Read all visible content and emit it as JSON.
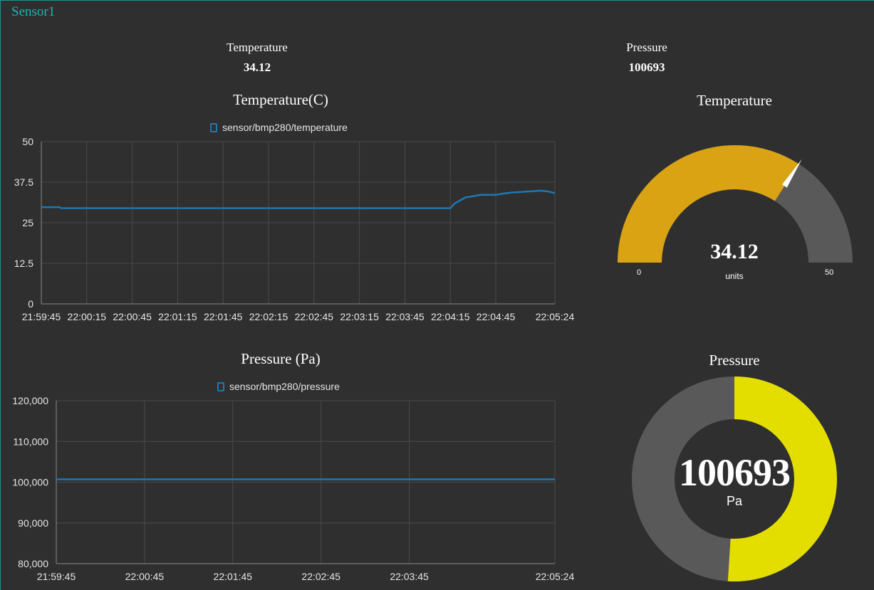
{
  "group": {
    "title": "Sensor1"
  },
  "text_temperature": {
    "label": "Temperature",
    "value": "34.12"
  },
  "text_pressure": {
    "label": "Pressure",
    "value": "100693"
  },
  "temperature_chart": {
    "title": "Temperature(C)",
    "legend": "sensor/bmp280/temperature"
  },
  "pressure_chart": {
    "title": "Pressure (Pa)",
    "legend": "sensor/bmp280/pressure"
  },
  "temperature_gauge": {
    "title": "Temperature",
    "value": "34.12",
    "units": "units",
    "min": "0",
    "max": "50",
    "numeric_value": 34.12,
    "range": [
      0,
      50
    ]
  },
  "pressure_gauge": {
    "title": "Pressure",
    "value": "100693",
    "units": "Pa",
    "fill_fraction": 0.51
  },
  "colors": {
    "accent": "#1fb3b3",
    "series": "#1f77b4",
    "gauge_fill": "#daa314",
    "donut_fill": "#e3de00",
    "track": "#595959"
  },
  "chart_data": [
    {
      "type": "line",
      "title": "Temperature(C)",
      "series": [
        {
          "name": "sensor/bmp280/temperature",
          "x": [
            "21:59:45",
            "21:59:57",
            "21:59:58",
            "22:04:15",
            "22:04:18",
            "22:04:25",
            "22:04:35",
            "22:04:45",
            "22:04:50",
            "22:04:55",
            "22:05:05",
            "22:05:15",
            "22:05:20",
            "22:05:24"
          ],
          "values": [
            29.8,
            29.8,
            29.5,
            29.5,
            31.0,
            32.8,
            33.6,
            33.6,
            34.0,
            34.3,
            34.6,
            34.9,
            34.6,
            34.12
          ]
        }
      ],
      "xticks": [
        "21:59:45",
        "22:00:15",
        "22:00:45",
        "22:01:15",
        "22:01:45",
        "22:02:15",
        "22:02:45",
        "22:03:15",
        "22:03:45",
        "22:04:15",
        "22:04:45",
        "22:05:24"
      ],
      "yticks": [
        "0",
        "12.5",
        "25",
        "37.5",
        "50"
      ],
      "ylim": [
        0,
        50
      ],
      "grid": true,
      "legend": "top"
    },
    {
      "type": "line",
      "title": "Pressure (Pa)",
      "series": [
        {
          "name": "sensor/bmp280/pressure",
          "x": [
            "21:59:45",
            "22:05:24"
          ],
          "values": [
            100693,
            100693
          ]
        }
      ],
      "xticks": [
        "21:59:45",
        "22:00:45",
        "22:01:45",
        "22:02:45",
        "22:03:45",
        "22:05:24"
      ],
      "yticks": [
        "80,000",
        "90,000",
        "100,000",
        "110,000",
        "120,000"
      ],
      "ylim": [
        80000,
        120000
      ],
      "grid": true,
      "legend": "top"
    }
  ]
}
